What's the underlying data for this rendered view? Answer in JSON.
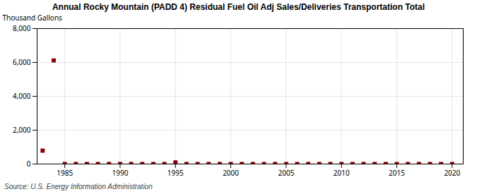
{
  "chart_data": {
    "type": "scatter",
    "title": "Annual Rocky Mountain (PADD 4) Residual Fuel Oil Adj Sales/Deliveries Transportation Total",
    "ylabel": "Thousand Gallons",
    "source": "Source: U.S. Energy Information Administration",
    "x": [
      1983,
      1984,
      1985,
      1986,
      1987,
      1988,
      1989,
      1990,
      1991,
      1992,
      1993,
      1994,
      1995,
      1996,
      1997,
      1998,
      1999,
      2000,
      2001,
      2002,
      2003,
      2004,
      2005,
      2006,
      2007,
      2008,
      2009,
      2010,
      2011,
      2012,
      2013,
      2014,
      2015,
      2016,
      2017,
      2018,
      2019,
      2020
    ],
    "values": [
      790,
      6120,
      5,
      5,
      5,
      5,
      5,
      5,
      5,
      5,
      5,
      5,
      100,
      5,
      5,
      5,
      5,
      5,
      5,
      5,
      5,
      5,
      5,
      5,
      5,
      5,
      5,
      5,
      5,
      5,
      5,
      5,
      5,
      5,
      5,
      5,
      5,
      5
    ],
    "color": "#8b0000",
    "marker": "square",
    "xlim": [
      1982.5,
      2021
    ],
    "ylim": [
      0,
      8000
    ],
    "xticks": [
      1985,
      1990,
      1995,
      2000,
      2005,
      2010,
      2015,
      2020
    ],
    "yticks": [
      0,
      {
        "value": 2000,
        "label": "2,000"
      },
      {
        "value": 4000,
        "label": "4,000"
      },
      {
        "value": 6000,
        "label": "6,000"
      },
      {
        "value": 8000,
        "label": "8,000"
      }
    ],
    "grid": true
  }
}
